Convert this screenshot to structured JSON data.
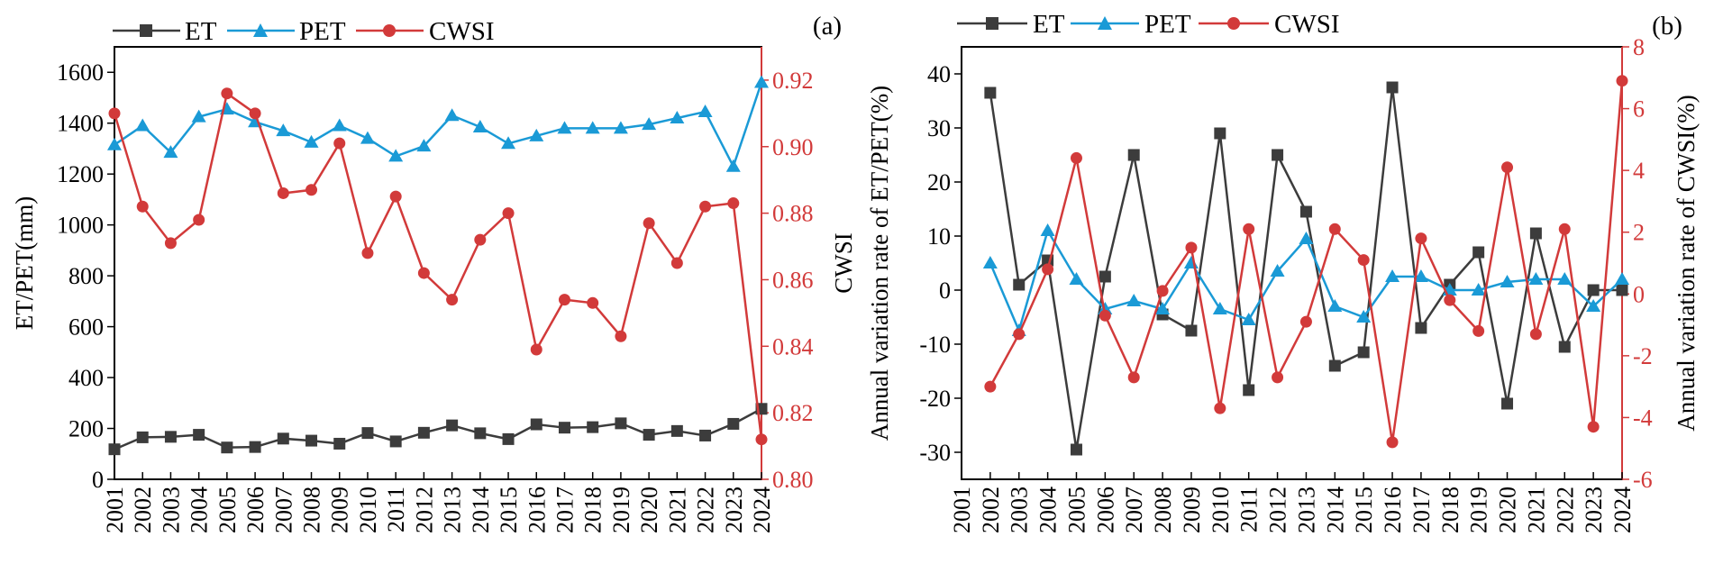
{
  "chart_data": [
    {
      "type": "line",
      "panel_label": "(a)",
      "years": [
        "2001",
        "2002",
        "2003",
        "2004",
        "2005",
        "2006",
        "2007",
        "2008",
        "2009",
        "2010",
        "2011",
        "2012",
        "2013",
        "2014",
        "2015",
        "2016",
        "2017",
        "2018",
        "2019",
        "2020",
        "2021",
        "2022",
        "2023",
        "2024"
      ],
      "ylabel_left": "ET/PET(mm)",
      "ylabel_right": "CWSI",
      "ylim_left": [
        0,
        1700
      ],
      "yticks_left": [
        0,
        200,
        400,
        600,
        800,
        1000,
        1200,
        1400,
        1600
      ],
      "ylim_right": [
        0.8,
        0.93
      ],
      "yticks_right": [
        "0.80",
        "0.82",
        "0.84",
        "0.86",
        "0.88",
        "0.90",
        "0.92"
      ],
      "series": [
        {
          "name": "ET",
          "axis": "left",
          "color": "#3c3c3c",
          "marker": "square",
          "values": [
            118,
            165,
            167,
            175,
            125,
            127,
            160,
            152,
            140,
            182,
            149,
            183,
            212,
            181,
            158,
            216,
            203,
            205,
            220,
            175,
            190,
            172,
            218,
            277
          ]
        },
        {
          "name": "PET",
          "axis": "left",
          "color": "#1a9ad6",
          "marker": "triangle",
          "values": [
            1315,
            1390,
            1285,
            1425,
            1455,
            1405,
            1370,
            1325,
            1390,
            1340,
            1270,
            1310,
            1430,
            1385,
            1320,
            1350,
            1380,
            1380,
            1380,
            1395,
            1420,
            1445,
            1230,
            1560
          ]
        },
        {
          "name": "CWSI",
          "axis": "right",
          "color": "#d23a3a",
          "marker": "circle",
          "values": [
            0.91,
            0.882,
            0.871,
            0.878,
            0.916,
            0.91,
            0.886,
            0.887,
            0.901,
            0.868,
            0.885,
            0.862,
            0.854,
            0.872,
            0.88,
            0.839,
            0.854,
            0.853,
            0.843,
            0.877,
            0.865,
            0.882,
            0.883,
            0.812
          ]
        }
      ]
    },
    {
      "type": "line",
      "panel_label": "(b)",
      "years": [
        "2001",
        "2002",
        "2003",
        "2004",
        "2005",
        "2006",
        "2007",
        "2008",
        "2009",
        "2010",
        "2011",
        "2012",
        "2013",
        "2014",
        "2015",
        "2016",
        "2017",
        "2018",
        "2019",
        "2020",
        "2021",
        "2022",
        "2023",
        "2024"
      ],
      "ylabel_left": "Annual variation rate of ET/PET(%)",
      "ylabel_right": "Annual variation rate of CWSI(%)",
      "ylim_left": [
        -35,
        45
      ],
      "yticks_left": [
        -30,
        -20,
        -10,
        0,
        10,
        20,
        30,
        40
      ],
      "ylim_right": [
        -6,
        8
      ],
      "yticks_right": [
        -6,
        -4,
        -2,
        0,
        2,
        4,
        6,
        8
      ],
      "series": [
        {
          "name": "ET",
          "axis": "left",
          "color": "#3c3c3c",
          "marker": "square",
          "values": [
            null,
            36.5,
            1.0,
            5.5,
            -29.5,
            2.5,
            25.0,
            -4.5,
            -7.5,
            29.0,
            -18.5,
            25.0,
            14.5,
            -14.0,
            -11.5,
            37.5,
            -7.0,
            1.0,
            7.0,
            -21.0,
            10.5,
            -10.5,
            0,
            0
          ]
        },
        {
          "name": "PET",
          "axis": "left",
          "color": "#1a9ad6",
          "marker": "triangle",
          "values": [
            null,
            5.0,
            -7.5,
            11.0,
            2.0,
            -3.5,
            -2.0,
            -3.5,
            5.0,
            -3.5,
            -5.5,
            3.5,
            9.5,
            -3.0,
            -5.0,
            2.5,
            2.5,
            0,
            0,
            1.5,
            2.0,
            2.0,
            -3.0,
            2.0
          ]
        },
        {
          "name": "CWSI",
          "axis": "right",
          "color": "#d23a3a",
          "marker": "circle",
          "values": [
            null,
            -3.0,
            -1.3,
            0.8,
            4.4,
            -0.7,
            -2.7,
            0.1,
            1.5,
            -3.7,
            2.1,
            -2.7,
            -0.9,
            2.1,
            1.1,
            -4.8,
            1.8,
            -0.2,
            -1.2,
            4.1,
            -1.3,
            2.1,
            -4.3,
            6.9
          ]
        }
      ]
    }
  ]
}
